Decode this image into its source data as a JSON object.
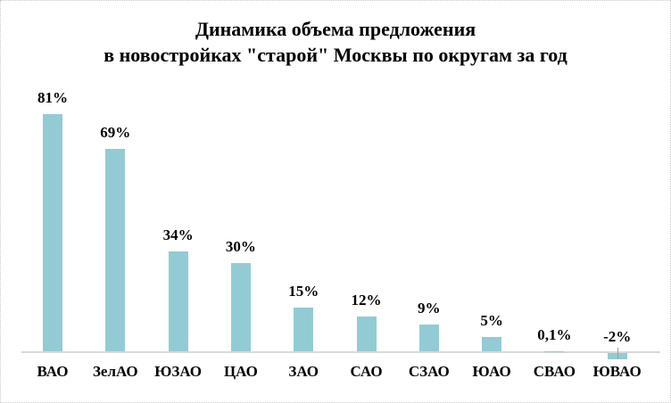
{
  "chart_data": {
    "type": "bar",
    "title": "Динамика объема предложения в новостройках \"старой\" Москвы по округам за год",
    "title_lines": [
      "Динамика объема предложения",
      "в новостройках \"старой\" Москвы по округам за год"
    ],
    "categories": [
      "ВАО",
      "ЗелАО",
      "ЮЗАО",
      "ЦАО",
      "ЗАО",
      "САО",
      "СЗАО",
      "ЮАО",
      "СВАО",
      "ЮВАО"
    ],
    "values": [
      81,
      69,
      34,
      30,
      15,
      12,
      9,
      5,
      0.1,
      -2
    ],
    "labels": [
      "81%",
      "69%",
      "34%",
      "30%",
      "15%",
      "12%",
      "9%",
      "5%",
      "0,1%",
      "-2%"
    ],
    "xlabel": "",
    "ylabel": "",
    "grid": false,
    "legend": null,
    "bar_color": "#93cbd4"
  }
}
